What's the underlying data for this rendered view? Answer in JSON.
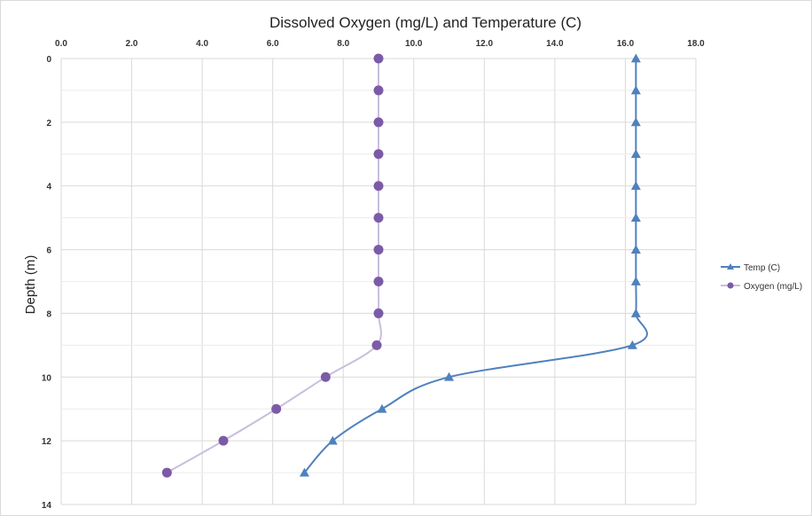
{
  "chart_data": {
    "type": "scatter",
    "title": "Dissolved Oxygen (mg/L) and Temperature (C)",
    "xlabel": "",
    "ylabel": "Depth (m)",
    "xlim": [
      0,
      18
    ],
    "ylim": [
      0,
      14
    ],
    "y_inverted": true,
    "x_axis_position": "top",
    "x_ticks": [
      "0.0",
      "2.0",
      "4.0",
      "6.0",
      "8.0",
      "10.0",
      "12.0",
      "14.0",
      "16.0",
      "18.0"
    ],
    "y_ticks": [
      "0",
      "2",
      "4",
      "6",
      "8",
      "10",
      "12",
      "14"
    ],
    "grid": true,
    "legend_position": "right",
    "series": [
      {
        "name": "Temp (C)",
        "marker": "triangle",
        "color": "#4f81bd",
        "points": [
          {
            "x": 16.3,
            "y": 0
          },
          {
            "x": 16.3,
            "y": 1
          },
          {
            "x": 16.3,
            "y": 2
          },
          {
            "x": 16.3,
            "y": 3
          },
          {
            "x": 16.3,
            "y": 4
          },
          {
            "x": 16.3,
            "y": 5
          },
          {
            "x": 16.3,
            "y": 6
          },
          {
            "x": 16.3,
            "y": 7
          },
          {
            "x": 16.3,
            "y": 8
          },
          {
            "x": 16.2,
            "y": 9
          },
          {
            "x": 11.0,
            "y": 10
          },
          {
            "x": 9.1,
            "y": 11
          },
          {
            "x": 7.7,
            "y": 12
          },
          {
            "x": 6.9,
            "y": 13
          }
        ]
      },
      {
        "name": "Oxygen (mg/L)",
        "marker": "circle",
        "color": "#7b5ba6",
        "line_color": "#c9bedd",
        "points": [
          {
            "x": 9.0,
            "y": 0
          },
          {
            "x": 9.0,
            "y": 1
          },
          {
            "x": 9.0,
            "y": 2
          },
          {
            "x": 9.0,
            "y": 3
          },
          {
            "x": 9.0,
            "y": 4
          },
          {
            "x": 9.0,
            "y": 5
          },
          {
            "x": 9.0,
            "y": 6
          },
          {
            "x": 9.0,
            "y": 7
          },
          {
            "x": 9.0,
            "y": 8
          },
          {
            "x": 8.95,
            "y": 9
          },
          {
            "x": 7.5,
            "y": 10
          },
          {
            "x": 6.1,
            "y": 11
          },
          {
            "x": 4.6,
            "y": 12
          },
          {
            "x": 3.0,
            "y": 13
          }
        ]
      }
    ]
  }
}
